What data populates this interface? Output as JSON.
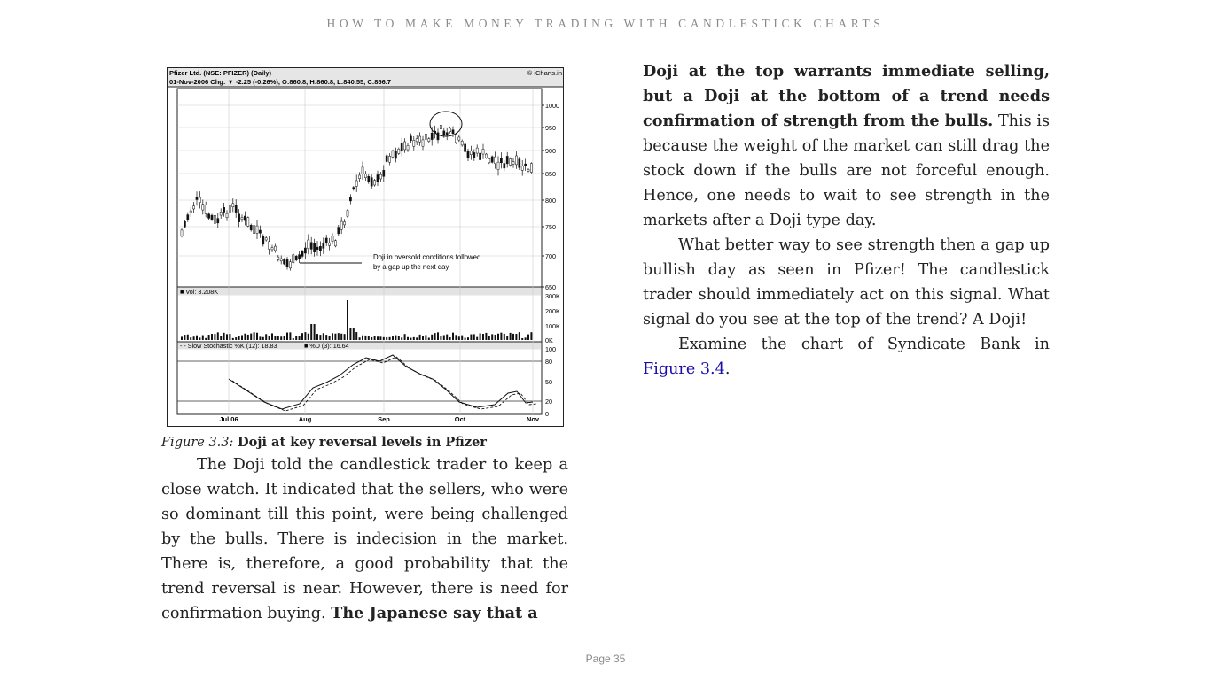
{
  "header": {
    "running_title": "HOW TO MAKE MONEY TRADING WITH CANDLESTICK CHARTS"
  },
  "figure": {
    "header_line1": "Pfizer Ltd. (NSE: PFIZER) (Daily)",
    "header_line2": "01-Nov-2006 Chg: ▼ -2.25 (-0.26%), O:860.8, H:860.8, L:840.55, C:856.7",
    "brand": "© iCharts.in",
    "annotation_line1": "Doji in oversold conditions followed",
    "annotation_line2": "by a gap up the next day",
    "volume_label": "■ Vol: 3.208K",
    "stoch_label_k": "- - Slow Stochastic %K (12): 18.83",
    "stoch_label_d": "■ %D (3): 16.64",
    "price_ticks": [
      "1000",
      "950",
      "900",
      "850",
      "800",
      "750",
      "700",
      "650"
    ],
    "volume_ticks": [
      "300K",
      "200K",
      "100K",
      "0K"
    ],
    "stoch_ticks": [
      "100",
      "80",
      "50",
      "20",
      "0"
    ],
    "x_ticks": [
      "Jul 06",
      "Aug",
      "Sep",
      "Oct",
      "Nov"
    ]
  },
  "caption": {
    "label": "Figure 3.3:",
    "title": "Doji at key reversal levels in Pfizer"
  },
  "left_column": {
    "p1_text": "The Doji told the candlestick trader to keep a close watch. It indicated that the sellers, who were so dominant till this point, were being challenged by the bulls. There is indecision in the market. There is, therefore, a good probability that the trend reversal is near. However, there is need for confirmation buying.",
    "p1_bold": "The Japanese say that a"
  },
  "right_column": {
    "p1_bold": "Doji at the top warrants immediate selling, but a Doji at the bottom of a trend needs confirmation of strength from the bulls.",
    "p1_text": "This is because the weight of the market can still drag the stock down if the bulls are not forceful enough. Hence, one needs to wait to see strength in the markets after a Doji type day.",
    "p2_text": "What better way to see strength then a gap up bullish day as seen in Pfizer! The candlestick trader should immediately act on this signal. What signal do you see at the top of the trend? A Doji!",
    "p3_text": "Examine the chart of Syndicate Bank in",
    "p3_link": "Figure 3.4",
    "p3_end": "."
  },
  "footer": {
    "page_label": "Page 35"
  }
}
